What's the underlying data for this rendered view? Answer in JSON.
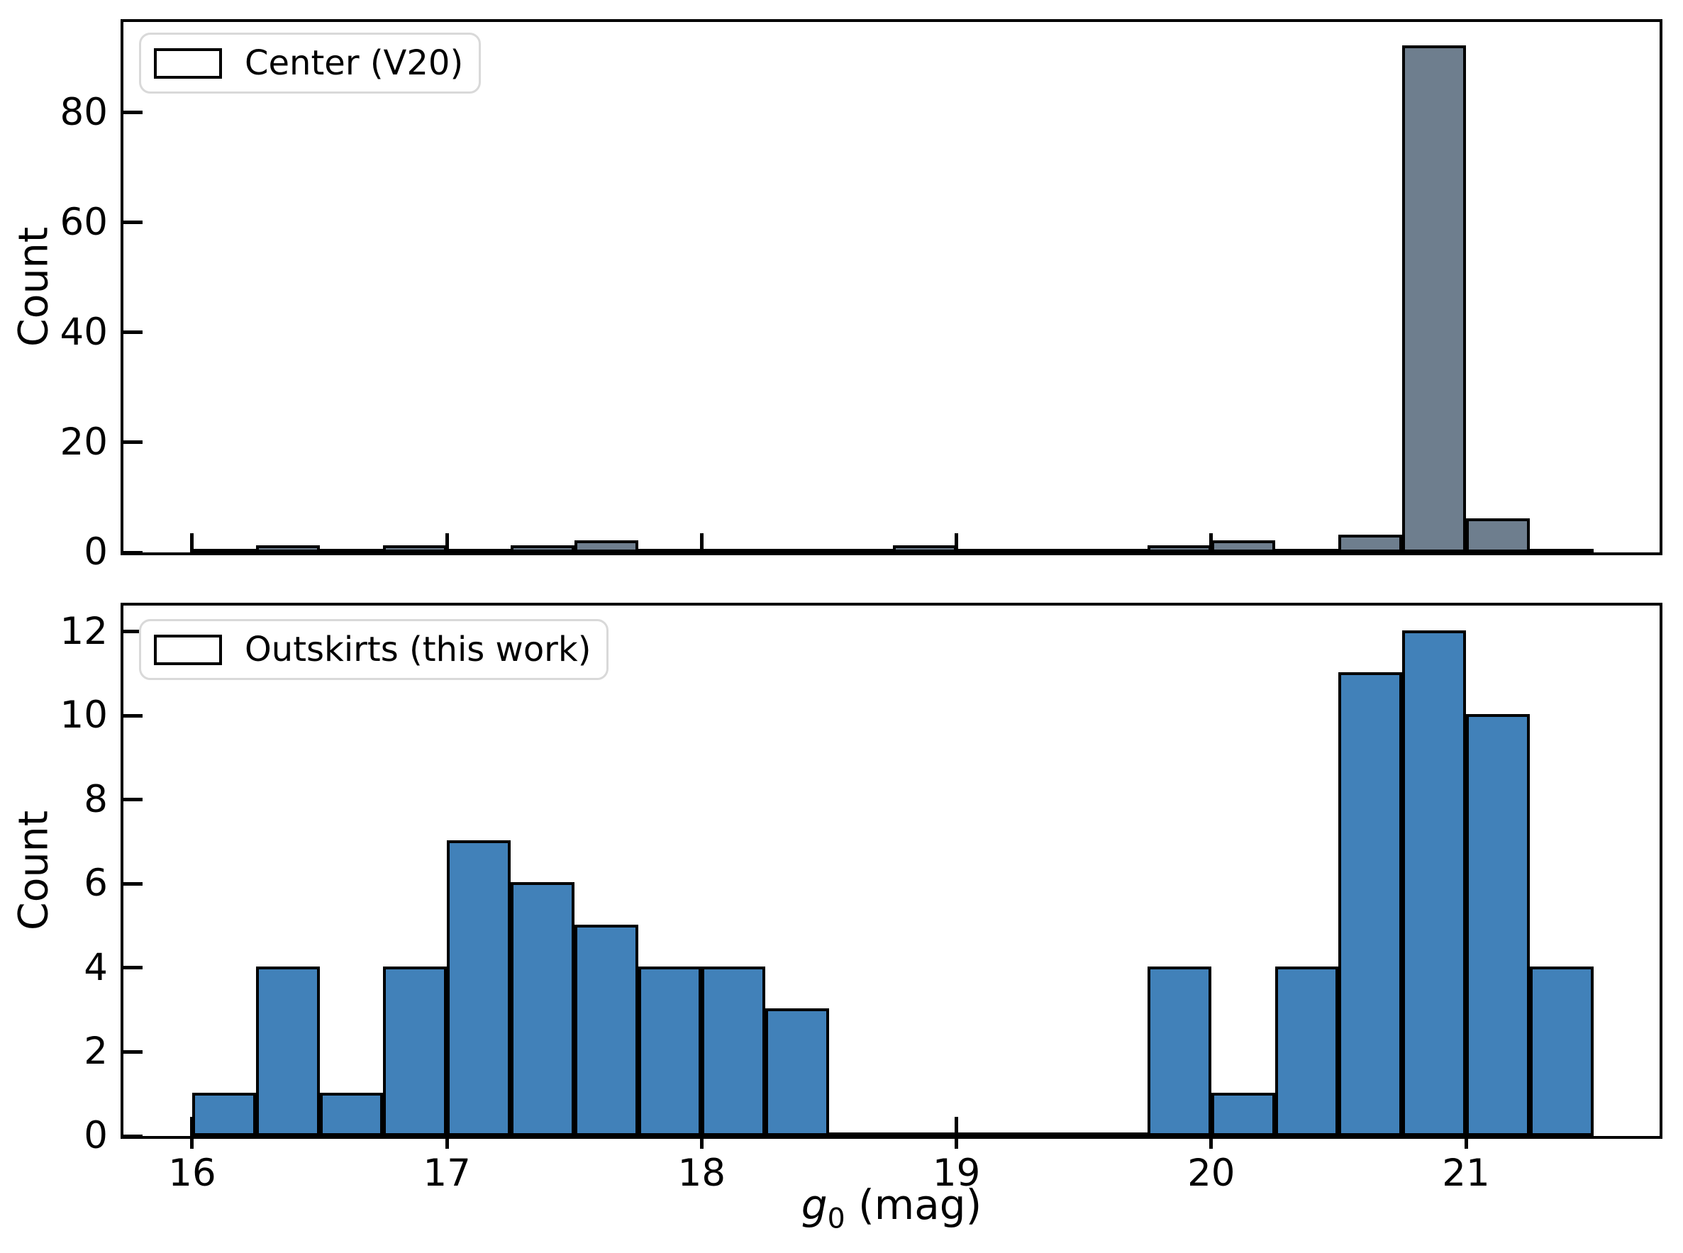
{
  "figure": {
    "background": "#ffffff",
    "ylabel": "Count",
    "xlabel": {
      "var": "g",
      "sub": "0",
      "rest": " (mag)",
      "display": "g0 (mag)"
    }
  },
  "chart_data": [
    {
      "type": "bar",
      "style": "histogram",
      "panel": "top",
      "legend_label": "Center (V20)",
      "legend_position": "upper left",
      "bar_fill": "#6e7e8e",
      "bar_edge": "#000000",
      "ylabel": "Count",
      "yticks": [
        0,
        20,
        40,
        60,
        80
      ],
      "ylim": [
        0,
        96.5
      ],
      "xlim": [
        15.73,
        21.76
      ],
      "xticks": [
        16,
        17,
        18,
        19,
        20,
        21
      ],
      "show_xtick_labels": false,
      "bin_start": 16.0,
      "bin_width": 0.25,
      "bin_edges": [
        16.0,
        16.25,
        16.5,
        16.75,
        17.0,
        17.25,
        17.5,
        17.75,
        18.0,
        18.25,
        18.5,
        18.75,
        19.0,
        19.25,
        19.5,
        19.75,
        20.0,
        20.25,
        20.5,
        20.75,
        21.0,
        21.25,
        21.5
      ],
      "counts": [
        0,
        1,
        0,
        1,
        0,
        1,
        2,
        0,
        0,
        0,
        0,
        1,
        0,
        0,
        0,
        1,
        2,
        0,
        3,
        92,
        6,
        0
      ],
      "grid": false
    },
    {
      "type": "bar",
      "style": "histogram",
      "panel": "bottom",
      "legend_label": "Outskirts (this work)",
      "legend_position": "upper left",
      "bar_fill": "#4181b9",
      "bar_edge": "#000000",
      "ylabel": "Count",
      "yticks": [
        0,
        2,
        4,
        6,
        8,
        10,
        12
      ],
      "ylim": [
        0,
        12.62
      ],
      "xlim": [
        15.73,
        21.76
      ],
      "xticks": [
        16,
        17,
        18,
        19,
        20,
        21
      ],
      "show_xtick_labels": true,
      "bin_start": 16.0,
      "bin_width": 0.25,
      "bin_edges": [
        16.0,
        16.25,
        16.5,
        16.75,
        17.0,
        17.25,
        17.5,
        17.75,
        18.0,
        18.25,
        18.5,
        18.75,
        19.0,
        19.25,
        19.5,
        19.75,
        20.0,
        20.25,
        20.5,
        20.75,
        21.0,
        21.25,
        21.5
      ],
      "counts": [
        1,
        4,
        1,
        4,
        7,
        6,
        5,
        4,
        4,
        3,
        0,
        0,
        0,
        0,
        0,
        4,
        1,
        4,
        11,
        12,
        10,
        4
      ],
      "grid": false
    }
  ]
}
